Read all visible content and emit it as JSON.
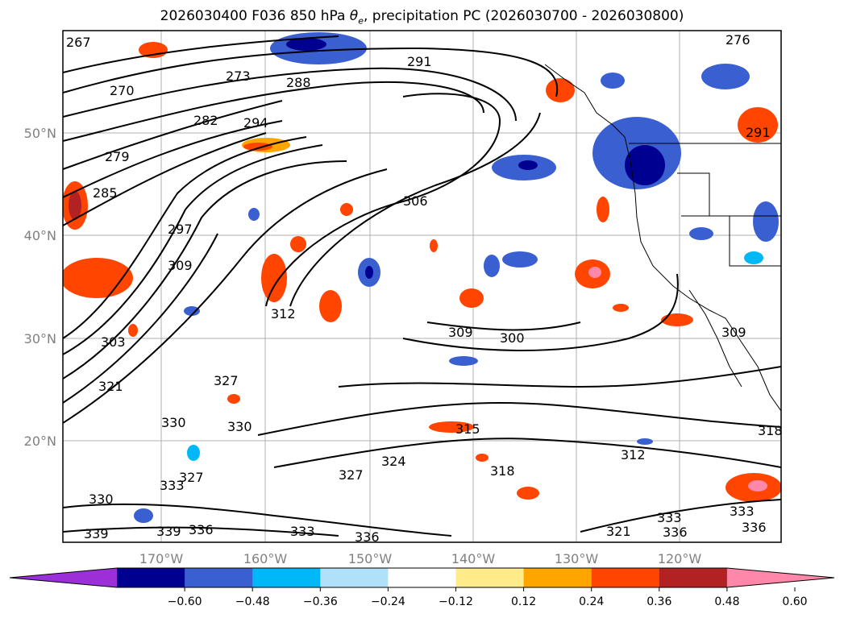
{
  "title": {
    "prefix": "2026030400 F036 850 hPa ",
    "theta": "θ",
    "theta_sub": "e",
    "suffix": ", precipitation PC (2026030700 - 2026030800)"
  },
  "axes": {
    "lat_labels": [
      "50°N",
      "40°N",
      "30°N",
      "20°N"
    ],
    "lon_labels": [
      "170°W",
      "160°W",
      "150°W",
      "140°W",
      "130°W",
      "120°W"
    ]
  },
  "colorbar": {
    "ticks": [
      "−0.60",
      "−0.48",
      "−0.36",
      "−0.24",
      "−0.12",
      "0.12",
      "0.24",
      "0.36",
      "0.48",
      "0.60"
    ],
    "colors": [
      "#9b30d9",
      "#000090",
      "#3a5fd0",
      "#00b8f8",
      "#b0e0fa",
      "#ffffff",
      "#ffeb8a",
      "#ffa500",
      "#ff4500",
      "#b22222",
      "#ff88aa"
    ]
  },
  "contour_labels": [
    {
      "text": "267"
    },
    {
      "text": "270"
    },
    {
      "text": "273"
    },
    {
      "text": "276"
    },
    {
      "text": "288"
    },
    {
      "text": "291"
    },
    {
      "text": "282"
    },
    {
      "text": "294"
    },
    {
      "text": "279"
    },
    {
      "text": "285"
    },
    {
      "text": "297"
    },
    {
      "text": "306"
    },
    {
      "text": "309"
    },
    {
      "text": "312"
    },
    {
      "text": "303"
    },
    {
      "text": "321"
    },
    {
      "text": "327"
    },
    {
      "text": "330"
    },
    {
      "text": "330"
    },
    {
      "text": "309"
    },
    {
      "text": "300"
    },
    {
      "text": "309"
    },
    {
      "text": "315"
    },
    {
      "text": "324"
    },
    {
      "text": "327"
    },
    {
      "text": "318"
    },
    {
      "text": "312"
    },
    {
      "text": "318"
    },
    {
      "text": "333"
    },
    {
      "text": "330"
    },
    {
      "text": "327"
    },
    {
      "text": "339"
    },
    {
      "text": "339"
    },
    {
      "text": "336"
    },
    {
      "text": "333"
    },
    {
      "text": "336"
    },
    {
      "text": "321"
    },
    {
      "text": "333"
    },
    {
      "text": "336"
    },
    {
      "text": "336"
    },
    {
      "text": "333"
    },
    {
      "text": "291"
    }
  ]
}
